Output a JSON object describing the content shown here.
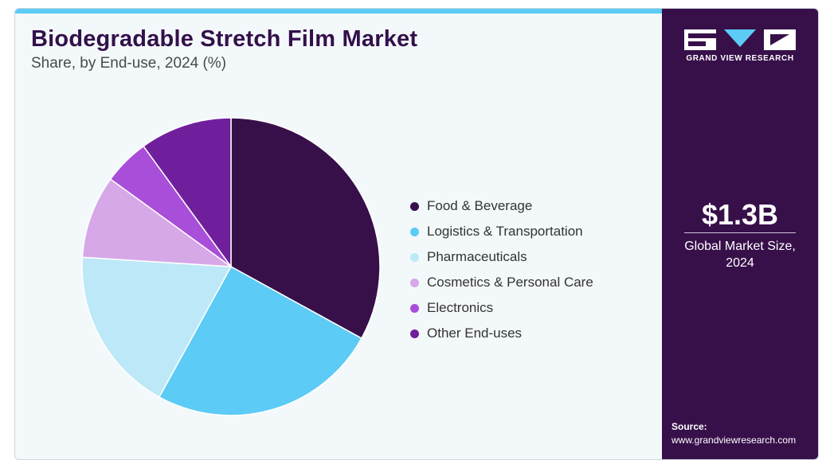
{
  "header": {
    "title": "Biodegradable Stretch Film Market",
    "subtitle": "Share, by End-use, 2024 (%)"
  },
  "brand": {
    "name": "GRAND VIEW RESEARCH",
    "colors": {
      "dark": "#37104a",
      "accent": "#5ccbf5"
    }
  },
  "sidebar": {
    "market_size": "$1.3B",
    "market_caption_1": "Global Market Size,",
    "market_caption_2": "2024",
    "source_label": "Source:",
    "source_url": "www.grandviewresearch.com"
  },
  "chart_data": {
    "type": "pie",
    "title": "Biodegradable Stretch Film Market",
    "subtitle": "Share, by End-use, 2024 (%)",
    "categories": [
      "Food & Beverage",
      "Logistics & Transportation",
      "Pharmaceuticals",
      "Cosmetics & Personal Care",
      "Electronics",
      "Other End-uses"
    ],
    "values": [
      33,
      25,
      18,
      9,
      5,
      10
    ],
    "colors": [
      "#37104a",
      "#5ccbf5",
      "#bde8f8",
      "#d6a8e8",
      "#a94ed9",
      "#6f1f9c"
    ],
    "legend_position": "right",
    "start_angle": "12 o'clock",
    "direction": "clockwise"
  }
}
